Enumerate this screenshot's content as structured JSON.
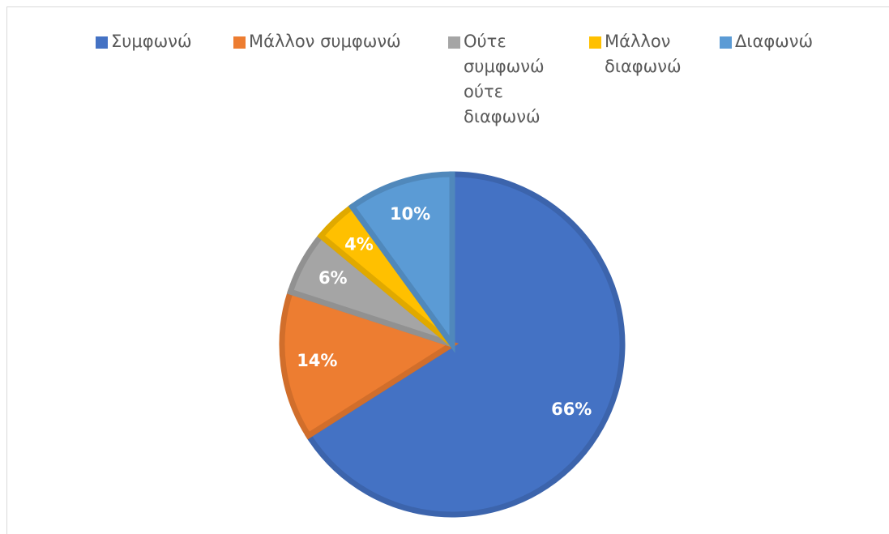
{
  "chart_data": {
    "type": "pie",
    "categories": [
      "Συμφωνώ",
      "Μάλλον συμφωνώ",
      "Ούτε συμφωνώ ούτε διαφωνώ",
      "Μάλλον διαφωνώ",
      "Διαφωνώ"
    ],
    "values": [
      66,
      14,
      6,
      4,
      10
    ],
    "value_labels": [
      "66%",
      "14%",
      "6%",
      "4%",
      "10%"
    ],
    "colors": [
      "#4472c4",
      "#ed7d31",
      "#a5a5a5",
      "#ffc000",
      "#5b9bd5"
    ],
    "legend": "top"
  }
}
